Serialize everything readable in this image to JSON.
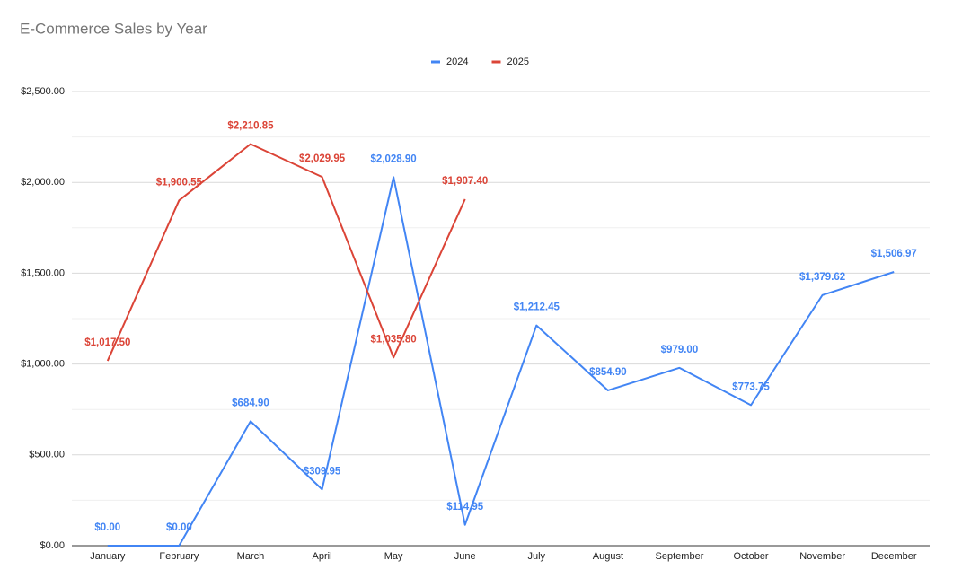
{
  "chart_data": {
    "type": "line",
    "title": "E-Commerce Sales by Year",
    "categories": [
      "January",
      "February",
      "March",
      "April",
      "May",
      "June",
      "July",
      "August",
      "September",
      "October",
      "November",
      "December"
    ],
    "series": [
      {
        "name": "2024",
        "color": "#4285f4",
        "values": [
          0,
          0,
          684.9,
          309.95,
          2028.9,
          114.95,
          1212.45,
          854.9,
          979.0,
          773.75,
          1379.62,
          1506.97
        ],
        "value_labels": [
          "$0.00",
          "$0.00",
          "$684.90",
          "$309.95",
          "$2,028.90",
          "$114.95",
          "$1,212.45",
          "$854.90",
          "$979.00",
          "$773.75",
          "$1,379.62",
          "$1,506.97"
        ]
      },
      {
        "name": "2025",
        "color": "#db4437",
        "values": [
          1017.5,
          1900.55,
          2210.85,
          2029.95,
          1035.8,
          1907.4,
          null,
          null,
          null,
          null,
          null,
          null
        ],
        "value_labels": [
          "$1,017.50",
          "$1,900.55",
          "$2,210.85",
          "$2,029.95",
          "$1,035.80",
          "$1,907.40",
          null,
          null,
          null,
          null,
          null,
          null
        ]
      }
    ],
    "ylim": [
      0,
      2500
    ],
    "yticks": [
      {
        "value": 0,
        "label": "$0.00"
      },
      {
        "value": 500,
        "label": "$500.00"
      },
      {
        "value": 1000,
        "label": "$1,000.00"
      },
      {
        "value": 1500,
        "label": "$1,500.00"
      },
      {
        "value": 2000,
        "label": "$2,000.00"
      },
      {
        "value": 2500,
        "label": "$2,500.00"
      }
    ],
    "minor_yticks": [
      250,
      750,
      1250,
      1750,
      2250
    ],
    "grid": true,
    "legend": "top"
  }
}
